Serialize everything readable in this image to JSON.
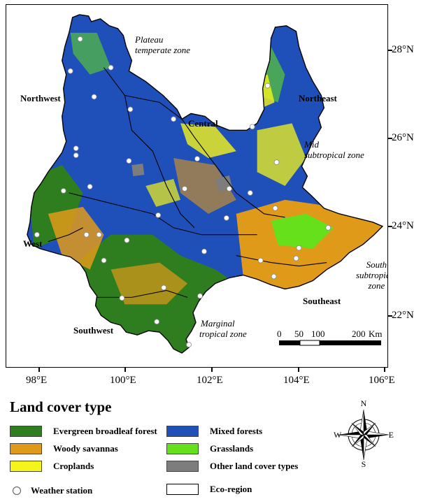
{
  "lat_labels": [
    "28°N",
    "26°N",
    "24°N",
    "22°N"
  ],
  "lon_labels": [
    "98°E",
    "100°E",
    "102°E",
    "104°E",
    "106°E"
  ],
  "regions": {
    "northwest": "Northwest",
    "central": "Central",
    "northeast": "Northeast",
    "west": "West",
    "southwest": "Southwest",
    "southeast": "Southeast"
  },
  "zones": {
    "plateau_l1": "Plateau",
    "plateau_l2": "temperate zone",
    "mid_l1": "Mid",
    "mid_l2": "subtropical zone",
    "south_l1": "South",
    "south_l2": "subtropical",
    "south_l3": "zone",
    "marginal_l1": "Marginal",
    "marginal_l2": "tropical zone"
  },
  "scale": {
    "t0": "0",
    "t50": "50",
    "t100": "100",
    "t200": "200",
    "unit": "Km"
  },
  "compass": {
    "n": "N",
    "s": "S",
    "e": "E",
    "w": "W"
  },
  "legend": {
    "title": "Land cover type",
    "items": {
      "evergreen": {
        "label": "Evergreen broadleaf forest",
        "color": "#2e7d1e"
      },
      "mixed": {
        "label": "Mixed forests",
        "color": "#1f4fb8"
      },
      "woody": {
        "label": "Woody savannas",
        "color": "#e09a1a"
      },
      "grass": {
        "label": "Grasslands",
        "color": "#66e01a"
      },
      "crop": {
        "label": "Croplands",
        "color": "#f5f51a"
      },
      "other": {
        "label": "Other land cover types",
        "color": "#7d7d7d"
      }
    },
    "station": "Weather station",
    "ecoregion": "Eco-region"
  }
}
